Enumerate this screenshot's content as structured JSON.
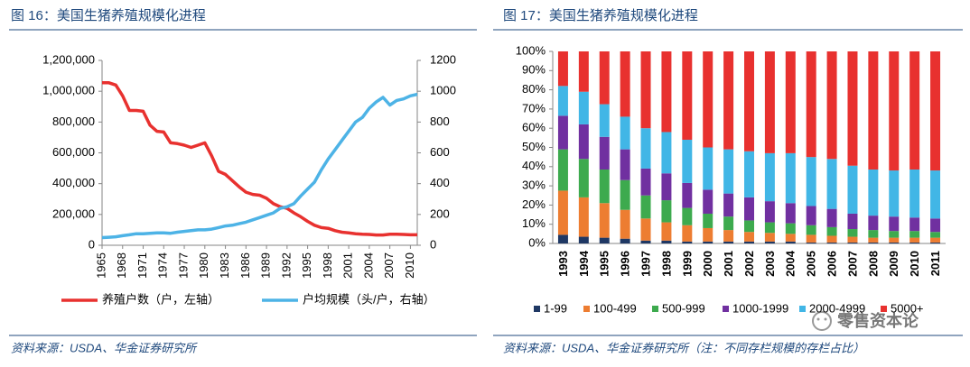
{
  "chart_data": [
    {
      "type": "line",
      "title": "图 16：美国生猪养殖规模化进程",
      "source": "资料来源：USDA、华金证券研究所",
      "x": [
        1965,
        1966,
        1967,
        1968,
        1969,
        1970,
        1971,
        1972,
        1973,
        1974,
        1975,
        1976,
        1977,
        1978,
        1979,
        1980,
        1981,
        1982,
        1983,
        1984,
        1985,
        1986,
        1987,
        1988,
        1989,
        1990,
        1991,
        1992,
        1993,
        1994,
        1995,
        1996,
        1997,
        1998,
        1999,
        2000,
        2001,
        2002,
        2003,
        2004,
        2005,
        2006,
        2007,
        2008,
        2009,
        2010,
        2011
      ],
      "xlim": [
        1965,
        2011
      ],
      "xticks": [
        1965,
        1968,
        1971,
        1974,
        1977,
        1980,
        1983,
        1986,
        1989,
        1992,
        1995,
        1998,
        2001,
        2004,
        2007,
        2010
      ],
      "ylim": [
        0,
        1200000
      ],
      "yticks": [
        0,
        {
          "value": 200000,
          "label": "200,000"
        },
        {
          "value": 400000,
          "label": "400,000"
        },
        {
          "value": 600000,
          "label": "600,000"
        },
        {
          "value": 800000,
          "label": "800,000"
        },
        {
          "value": 1000000,
          "label": "1,000,000"
        },
        {
          "value": 1200000,
          "label": "1,200,000"
        }
      ],
      "y2lim": [
        0,
        1200
      ],
      "y2ticks": [
        0,
        200,
        400,
        600,
        800,
        1000,
        1200
      ],
      "legend": "bottom",
      "series": [
        {
          "name": "养殖户数（户，左轴）",
          "color": "#e8312f",
          "values": [
            1055000,
            1055000,
            1040000,
            970000,
            875000,
            875000,
            870000,
            780000,
            740000,
            735000,
            665000,
            660000,
            650000,
            635000,
            650000,
            665000,
            580000,
            480000,
            460000,
            420000,
            380000,
            345000,
            330000,
            325000,
            305000,
            270000,
            250000,
            240000,
            210000,
            185000,
            155000,
            130000,
            115000,
            110000,
            95000,
            85000,
            80000,
            75000,
            72000,
            70000,
            67000,
            67000,
            72000,
            72000,
            70000,
            68000,
            68000
          ]
        },
        {
          "name": "户均规模（头/户，右轴）",
          "color": "#4db3e6",
          "axis": "y2",
          "values": [
            50,
            52,
            55,
            62,
            68,
            75,
            75,
            78,
            80,
            80,
            78,
            85,
            90,
            95,
            100,
            100,
            105,
            115,
            125,
            130,
            140,
            150,
            165,
            180,
            195,
            210,
            240,
            250,
            270,
            320,
            365,
            410,
            490,
            560,
            620,
            680,
            740,
            800,
            830,
            890,
            930,
            960,
            910,
            940,
            950,
            970,
            980
          ]
        }
      ]
    },
    {
      "type": "bar",
      "stacked": true,
      "title": "图 17：美国生猪养殖规模化进程",
      "source": "资料来源：USDA、华金证券研究所（注：不同存栏规模的存栏占比）",
      "categories": [
        "1993",
        "1994",
        "1995",
        "1996",
        "1997",
        "1998",
        "1999",
        "2000",
        "2001",
        "2002",
        "2003",
        "2004",
        "2005",
        "2006",
        "2007",
        "2008",
        "2009",
        "2010",
        "2011"
      ],
      "ylim": [
        0,
        100
      ],
      "yticks": [
        {
          "value": 0,
          "label": "0%"
        },
        {
          "value": 10,
          "label": "10%"
        },
        {
          "value": 20,
          "label": "20%"
        },
        {
          "value": 30,
          "label": "30%"
        },
        {
          "value": 40,
          "label": "40%"
        },
        {
          "value": 50,
          "label": "50%"
        },
        {
          "value": 60,
          "label": "60%"
        },
        {
          "value": 70,
          "label": "70%"
        },
        {
          "value": 80,
          "label": "80%"
        },
        {
          "value": 90,
          "label": "90%"
        },
        {
          "value": 100,
          "label": "100%"
        }
      ],
      "legend": "bottom",
      "series": [
        {
          "name": "1-99",
          "color": "#1f3864",
          "values": [
            4.5,
            3.5,
            3,
            2.5,
            1.5,
            1.5,
            1,
            1,
            1,
            1,
            1,
            1,
            0.5,
            0.5,
            0.5,
            0.5,
            0.5,
            0.5,
            0.5
          ]
        },
        {
          "name": "100-499",
          "color": "#ed7d31",
          "values": [
            23,
            20.5,
            18,
            15,
            11.5,
            9.5,
            8.5,
            7,
            6,
            5,
            4.5,
            4,
            4,
            3.5,
            3,
            2.5,
            2.5,
            2.5,
            2.5
          ]
        },
        {
          "name": "500-999",
          "color": "#3daa4e",
          "values": [
            21.5,
            20,
            17.5,
            15.5,
            12,
            11.5,
            9,
            7.5,
            7,
            6,
            5.5,
            5.5,
            5,
            4.5,
            4,
            4,
            3.5,
            3.5,
            3
          ]
        },
        {
          "name": "1000-1999",
          "color": "#7030a0",
          "values": [
            17.5,
            18,
            17,
            16,
            14,
            14,
            13,
            12.5,
            12,
            12,
            11,
            10.5,
            10,
            9.5,
            8,
            7.5,
            7.5,
            7,
            7
          ]
        },
        {
          "name": "2000-4999",
          "color": "#41b6e6",
          "values": [
            15.5,
            17,
            17,
            17,
            21,
            21.5,
            22.5,
            22,
            23,
            24,
            25,
            26,
            25.5,
            26,
            25,
            24,
            24,
            25,
            25
          ]
        },
        {
          "name": "5000+",
          "color": "#e8312f",
          "values": [
            18,
            21,
            27.5,
            34,
            40,
            42,
            46,
            50,
            51,
            52,
            53,
            53,
            55,
            56,
            59.5,
            61.5,
            62,
            61.5,
            62
          ]
        }
      ]
    }
  ],
  "watermark": "零售资本论"
}
